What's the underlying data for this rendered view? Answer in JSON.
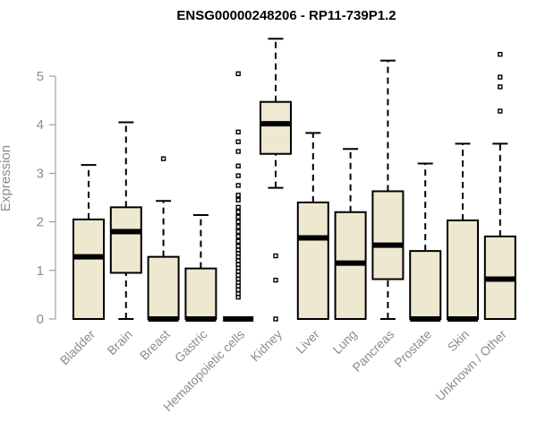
{
  "chart_data": {
    "type": "boxplot",
    "title": "ENSG00000248206 - RP11-739P1.2",
    "xlabel": "",
    "ylabel": "Expression",
    "ylim": [
      0,
      5.8
    ],
    "yticks": [
      0,
      1,
      2,
      3,
      4,
      5
    ],
    "box_color": "#efe8d0",
    "categories": [
      "Bladder",
      "Brain",
      "Breast",
      "Gastric",
      "Hematopoietic cells",
      "Kidney",
      "Liver",
      "Lung",
      "Pancreas",
      "Prostate",
      "Skin",
      "Unknown / Other"
    ],
    "boxes": [
      {
        "name": "Bladder",
        "min": 0,
        "q1": 0,
        "median": 1.28,
        "q3": 2.05,
        "max": 3.17,
        "outliers": []
      },
      {
        "name": "Brain",
        "min": 0,
        "q1": 0.95,
        "median": 1.8,
        "q3": 2.3,
        "max": 4.05,
        "outliers": []
      },
      {
        "name": "Breast",
        "min": 0,
        "q1": 0,
        "median": 0,
        "q3": 1.28,
        "max": 2.43,
        "outliers": [
          3.3
        ]
      },
      {
        "name": "Gastric",
        "min": 0,
        "q1": 0,
        "median": 0,
        "q3": 1.04,
        "max": 2.14,
        "outliers": []
      },
      {
        "name": "Hematopoietic cells",
        "min": 0,
        "q1": 0,
        "median": 0,
        "q3": 0,
        "max": 0,
        "outliers": [
          5.05,
          3.85,
          3.65,
          3.45,
          3.15,
          2.95,
          2.75,
          2.55,
          2.45,
          2.3,
          2.2,
          2.1,
          2.0,
          1.9,
          1.8,
          1.7,
          1.6,
          1.5,
          1.42,
          1.35,
          1.28,
          1.2,
          1.12,
          1.05,
          0.98,
          0.9,
          0.82,
          0.75,
          0.68,
          0.6,
          0.52,
          0.45
        ]
      },
      {
        "name": "Kidney",
        "min": 2.7,
        "q1": 3.4,
        "median": 4.02,
        "q3": 4.47,
        "max": 5.77,
        "outliers": [
          1.3,
          0.8,
          0
        ]
      },
      {
        "name": "Liver",
        "min": 0,
        "q1": 0,
        "median": 1.67,
        "q3": 2.4,
        "max": 3.83,
        "outliers": []
      },
      {
        "name": "Lung",
        "min": 0,
        "q1": 0,
        "median": 1.15,
        "q3": 2.2,
        "max": 3.5,
        "outliers": []
      },
      {
        "name": "Pancreas",
        "min": 0,
        "q1": 0.82,
        "median": 1.52,
        "q3": 2.63,
        "max": 5.32,
        "outliers": []
      },
      {
        "name": "Prostate",
        "min": 0,
        "q1": 0,
        "median": 0,
        "q3": 1.4,
        "max": 3.2,
        "outliers": []
      },
      {
        "name": "Skin",
        "min": 0,
        "q1": 0,
        "median": 0,
        "q3": 2.03,
        "max": 3.61,
        "outliers": []
      },
      {
        "name": "Unknown / Other",
        "min": 0,
        "q1": 0,
        "median": 0.82,
        "q3": 1.7,
        "max": 3.61,
        "outliers": [
          5.45,
          4.98,
          4.78,
          4.28
        ]
      }
    ]
  }
}
